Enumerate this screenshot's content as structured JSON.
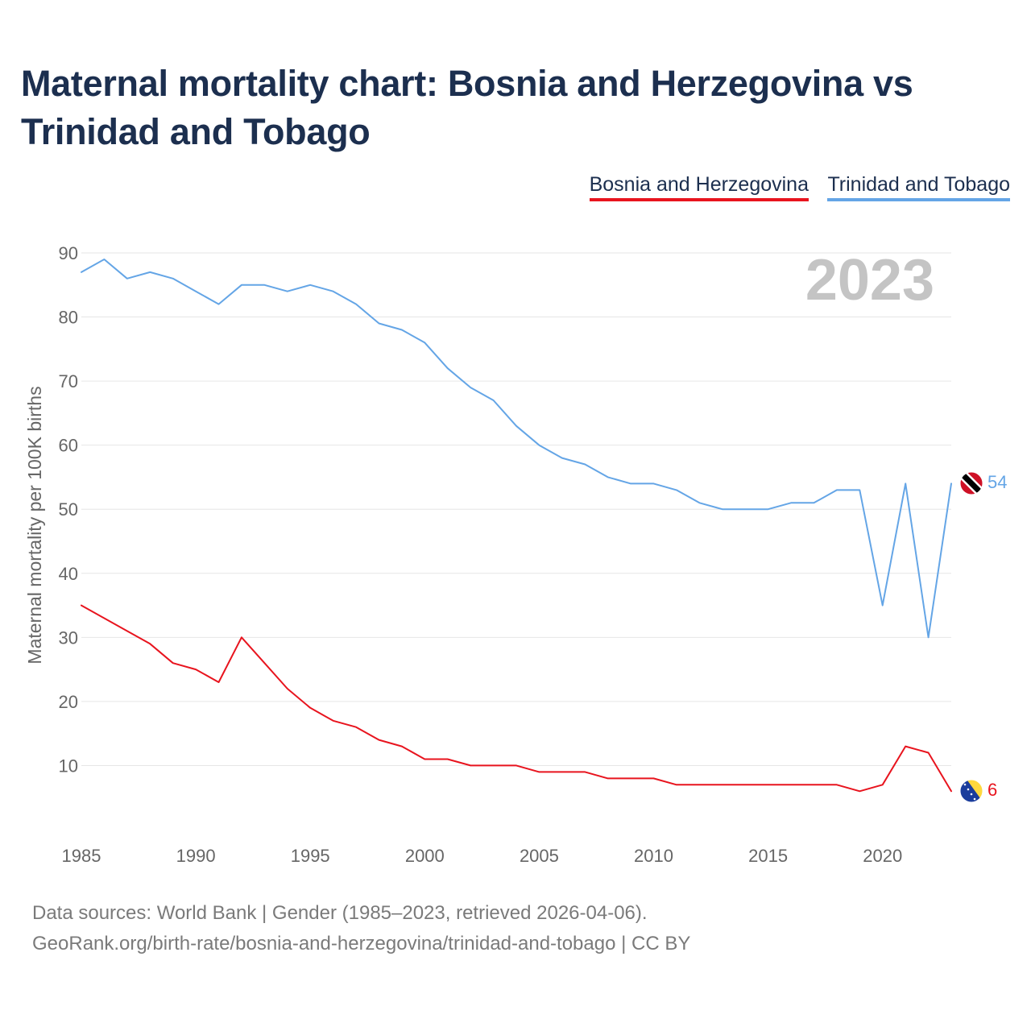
{
  "title": "Maternal mortality chart: Bosnia and Herzegovina vs Trinidad and Tobago",
  "footer": {
    "source": "Data sources: World Bank | Gender (1985–2023, retrieved 2026-04-06).",
    "url": "GeoRank.org/birth-rate/bosnia-and-herzegovina/trinidad-and-tobago | CC BY"
  },
  "chart_data": {
    "type": "line",
    "title": "Maternal mortality chart: Bosnia and Herzegovina vs Trinidad and Tobago",
    "ylabel": "Maternal mortality per 100K births",
    "xlabel": "",
    "year_label": "2023",
    "xlim": [
      1985,
      2023
    ],
    "ylim": [
      0,
      90
    ],
    "yticks": [
      10,
      20,
      30,
      40,
      50,
      60,
      70,
      80,
      90
    ],
    "xticks": [
      1985,
      1990,
      1995,
      2000,
      2005,
      2010,
      2015,
      2020
    ],
    "legend_position": "top-right",
    "grid": true,
    "x": [
      1985,
      1986,
      1987,
      1988,
      1989,
      1990,
      1991,
      1992,
      1993,
      1994,
      1995,
      1996,
      1997,
      1998,
      1999,
      2000,
      2001,
      2002,
      2003,
      2004,
      2005,
      2006,
      2007,
      2008,
      2009,
      2010,
      2011,
      2012,
      2013,
      2014,
      2015,
      2016,
      2017,
      2018,
      2019,
      2020,
      2021,
      2022,
      2023
    ],
    "series": [
      {
        "name": "Bosnia and Herzegovina",
        "color": "#e8141e",
        "end_label": "6",
        "flag": "bosnia-and-herzegovina-flag-icon",
        "values": [
          35,
          33,
          31,
          29,
          26,
          25,
          23,
          30,
          26,
          22,
          19,
          17,
          16,
          14,
          13,
          11,
          11,
          10,
          10,
          10,
          9,
          9,
          9,
          8,
          8,
          8,
          7,
          7,
          7,
          7,
          7,
          7,
          7,
          7,
          6,
          7,
          13,
          12,
          6
        ]
      },
      {
        "name": "Trinidad and Tobago",
        "color": "#64a5e6",
        "end_label": "54",
        "flag": "trinidad-and-tobago-flag-icon",
        "values": [
          87,
          89,
          86,
          87,
          86,
          84,
          82,
          85,
          85,
          84,
          85,
          84,
          82,
          79,
          78,
          76,
          72,
          69,
          67,
          63,
          60,
          58,
          57,
          55,
          54,
          54,
          53,
          51,
          50,
          50,
          50,
          51,
          51,
          53,
          53,
          35,
          54,
          30,
          54
        ]
      }
    ]
  }
}
